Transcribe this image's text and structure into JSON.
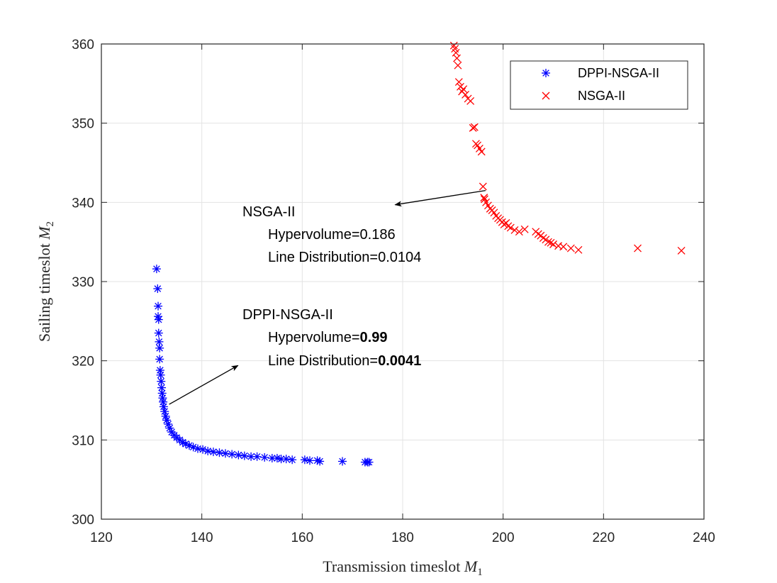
{
  "chart_data": {
    "type": "scatter",
    "xlabel": "Transmission timeslot",
    "xlabel_sym": "M",
    "xlabel_sub": "1",
    "ylabel": "Sailing timeslot",
    "ylabel_sym": "M",
    "ylabel_sub": "2",
    "xlim": [
      120,
      240
    ],
    "ylim": [
      300,
      360
    ],
    "xticks": [
      120,
      140,
      160,
      180,
      200,
      220,
      240
    ],
    "yticks": [
      300,
      310,
      320,
      330,
      340,
      350,
      360
    ],
    "grid": true,
    "legend_position": "top-right",
    "series": [
      {
        "name": "DPPI-NSGA-II",
        "marker": "asterisk",
        "color": "#0000ff",
        "x": [
          131.0,
          131.2,
          131.3,
          131.3,
          131.4,
          131.4,
          131.5,
          131.6,
          131.6,
          131.7,
          131.8,
          131.9,
          132.0,
          132.1,
          132.2,
          132.3,
          132.4,
          132.6,
          132.8,
          133.0,
          133.3,
          133.6,
          134.0,
          134.5,
          135.0,
          135.6,
          136.2,
          136.8,
          137.5,
          138.3,
          139.2,
          140.2,
          141.2,
          142.3,
          143.5,
          144.7,
          146.0,
          147.3,
          148.5,
          149.8,
          151.0,
          152.5,
          154.0,
          155.0,
          155.8,
          156.8,
          158.0,
          160.5,
          161.5,
          163.0,
          163.5,
          168.0,
          172.5,
          173.0,
          173.3
        ],
        "y": [
          331.6,
          329.1,
          326.9,
          325.6,
          325.2,
          323.5,
          322.4,
          321.6,
          320.2,
          318.8,
          318.2,
          317.4,
          316.6,
          315.9,
          315.3,
          314.8,
          314.2,
          313.6,
          313.0,
          312.5,
          312.0,
          311.5,
          311.0,
          310.6,
          310.3,
          310.0,
          309.7,
          309.5,
          309.3,
          309.1,
          308.9,
          308.8,
          308.6,
          308.5,
          308.4,
          308.3,
          308.2,
          308.1,
          308.0,
          307.9,
          307.9,
          307.8,
          307.7,
          307.7,
          307.6,
          307.6,
          307.5,
          307.5,
          307.4,
          307.4,
          307.3,
          307.3,
          307.2,
          307.2,
          307.2
        ]
      },
      {
        "name": "NSGA-II",
        "marker": "cross",
        "color": "#ff0000",
        "x": [
          190.2,
          190.4,
          190.6,
          190.8,
          191.0,
          191.2,
          191.5,
          191.8,
          192.1,
          192.5,
          193.0,
          193.5,
          194.0,
          194.3,
          194.6,
          194.9,
          195.3,
          195.7,
          196.0,
          196.2,
          196.3,
          196.6,
          197.0,
          197.4,
          197.8,
          198.2,
          198.6,
          199.0,
          199.4,
          199.8,
          200.2,
          200.6,
          201.0,
          201.5,
          202.3,
          203.2,
          204.3,
          206.5,
          207.0,
          207.5,
          208.0,
          208.5,
          209.0,
          209.5,
          210.0,
          211.0,
          212.0,
          213.5,
          215.0,
          226.8,
          235.5
        ],
        "y": [
          359.8,
          359.4,
          358.9,
          358.2,
          357.3,
          355.2,
          354.6,
          354.0,
          354.3,
          353.6,
          353.1,
          352.8,
          349.4,
          349.5,
          347.4,
          347.2,
          346.8,
          346.4,
          342.0,
          340.6,
          340.4,
          340.0,
          339.6,
          339.2,
          339.0,
          338.7,
          338.3,
          338.0,
          337.8,
          337.5,
          337.2,
          337.4,
          337.0,
          336.8,
          336.5,
          336.3,
          336.6,
          336.3,
          336.0,
          335.8,
          335.5,
          335.3,
          335.0,
          334.9,
          334.7,
          334.5,
          334.4,
          334.2,
          334.0,
          334.2,
          333.9
        ]
      }
    ],
    "annotations": [
      {
        "title": "NSGA-II",
        "hv_label": "Hypervolume=",
        "hv_value": "0.186",
        "ld_label": "Line Distribution=",
        "ld_value": "0.0104",
        "arrow_from": [
          196.5,
          341.5
        ],
        "arrow_to": [
          178.5,
          339.7
        ]
      },
      {
        "title": "DPPI-NSGA-II",
        "hv_label": "Hypervolume=",
        "hv_value": "0.99",
        "ld_label": "Line Distribution=",
        "ld_value": "0.0041",
        "arrow_from": [
          133.5,
          314.5
        ],
        "arrow_to": [
          147.2,
          319.4
        ]
      }
    ]
  }
}
